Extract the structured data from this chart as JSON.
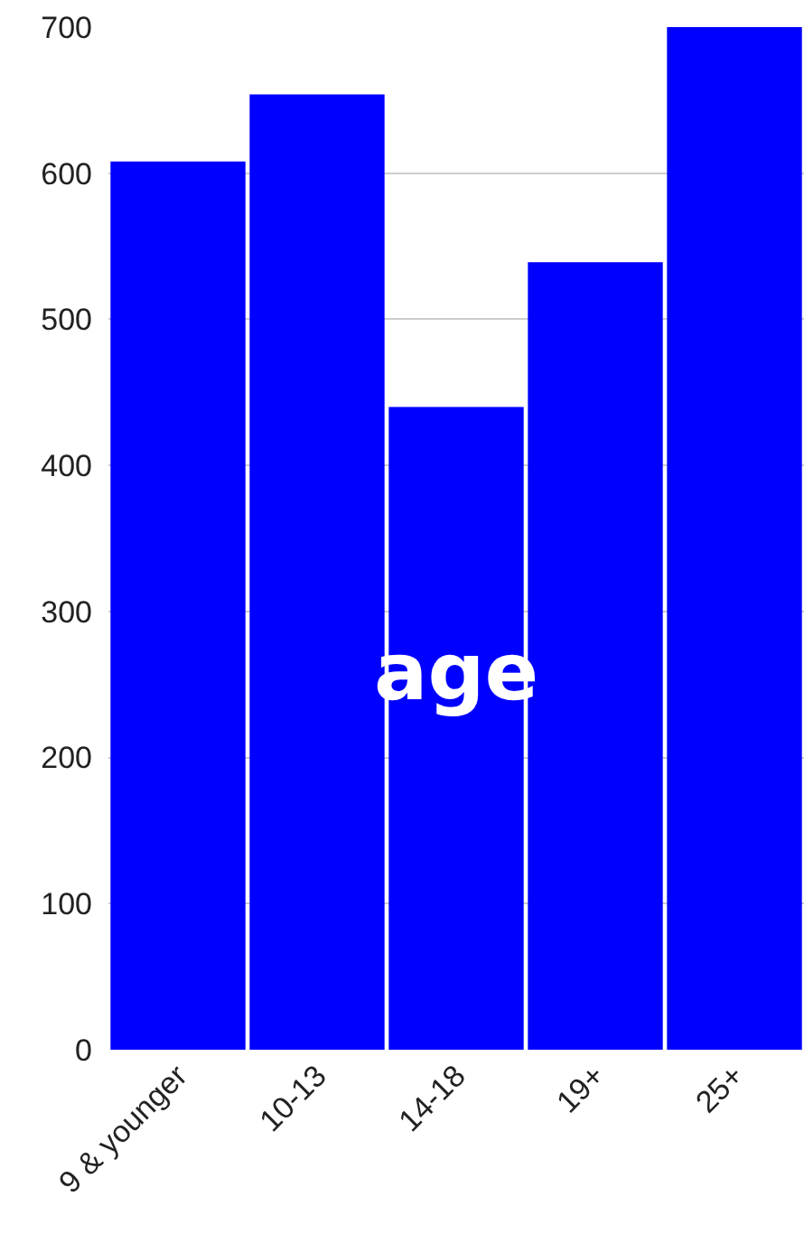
{
  "chart_data": {
    "type": "bar",
    "categories": [
      "9 & younger",
      "10-13",
      "14-18",
      "19+",
      "25+"
    ],
    "values": [
      608,
      654,
      440,
      539,
      700
    ],
    "color": "#0000ff",
    "ylim": [
      0,
      700
    ],
    "yticks": [
      0,
      100,
      200,
      300,
      400,
      500,
      600,
      700
    ],
    "grid": "y",
    "annotations": [
      "age"
    ]
  }
}
